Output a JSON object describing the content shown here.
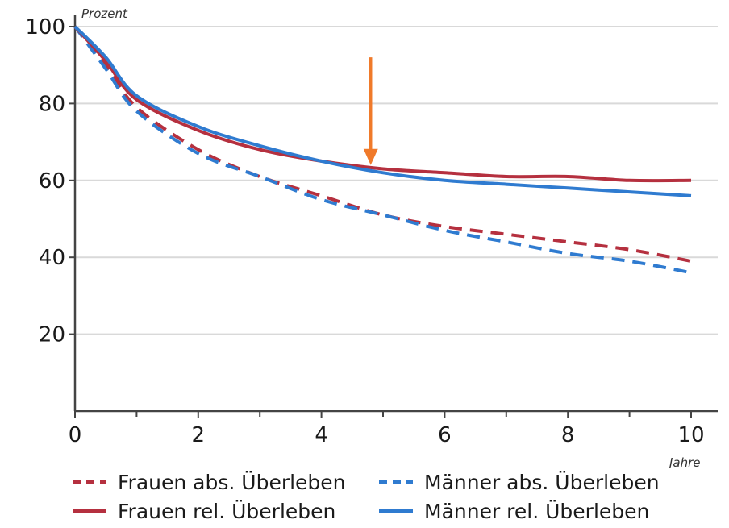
{
  "chart_data": {
    "type": "line",
    "y_unit": "Prozent",
    "x_unit": "Jahre",
    "xlim": [
      0,
      10
    ],
    "ylim": [
      0,
      100
    ],
    "x_ticks": [
      0,
      2,
      4,
      6,
      8,
      10
    ],
    "x_minor_ticks": [
      1,
      3,
      5,
      7,
      9
    ],
    "y_ticks": [
      20,
      40,
      60,
      80,
      100
    ],
    "grid": "horizontal",
    "legend_position": "bottom",
    "annotation": {
      "type": "arrow",
      "color": "#f07a2a",
      "x": 4.8,
      "y_from": 92,
      "y_to": 64
    },
    "series": [
      {
        "name": "Frauen abs. Überleben",
        "color": "#b5303f",
        "style": "dashed",
        "x": [
          0,
          0.5,
          1,
          2,
          3,
          4,
          5,
          6,
          7,
          8,
          9,
          10
        ],
        "values": [
          100,
          90,
          79,
          68,
          61,
          56,
          51,
          48,
          46,
          44,
          42,
          39
        ]
      },
      {
        "name": "Männer abs. Überleben",
        "color": "#2f7bd0",
        "style": "dashed",
        "x": [
          0,
          0.5,
          1,
          2,
          3,
          4,
          5,
          6,
          7,
          8,
          9,
          10
        ],
        "values": [
          100,
          89,
          78,
          67,
          61,
          55,
          51,
          47,
          44,
          41,
          39,
          36
        ]
      },
      {
        "name": "Frauen rel. Überleben",
        "color": "#b5303f",
        "style": "solid",
        "x": [
          0,
          0.5,
          1,
          2,
          3,
          4,
          5,
          6,
          7,
          8,
          9,
          10
        ],
        "values": [
          100,
          91,
          81,
          73,
          68,
          65,
          63,
          62,
          61,
          61,
          60,
          60
        ]
      },
      {
        "name": "Männer rel. Überleben",
        "color": "#2f7bd0",
        "style": "solid",
        "x": [
          0,
          0.5,
          1,
          2,
          3,
          4,
          5,
          6,
          7,
          8,
          9,
          10
        ],
        "values": [
          100,
          92,
          82,
          74,
          69,
          65,
          62,
          60,
          59,
          58,
          57,
          56
        ]
      }
    ]
  },
  "legend": {
    "items": [
      {
        "label": "Frauen abs. Überleben",
        "color": "#b5303f",
        "style": "dashed"
      },
      {
        "label": "Männer abs. Überleben",
        "color": "#2f7bd0",
        "style": "dashed"
      },
      {
        "label": "Frauen rel. Überleben",
        "color": "#b5303f",
        "style": "solid"
      },
      {
        "label": "Männer rel. Überleben",
        "color": "#2f7bd0",
        "style": "solid"
      }
    ]
  }
}
